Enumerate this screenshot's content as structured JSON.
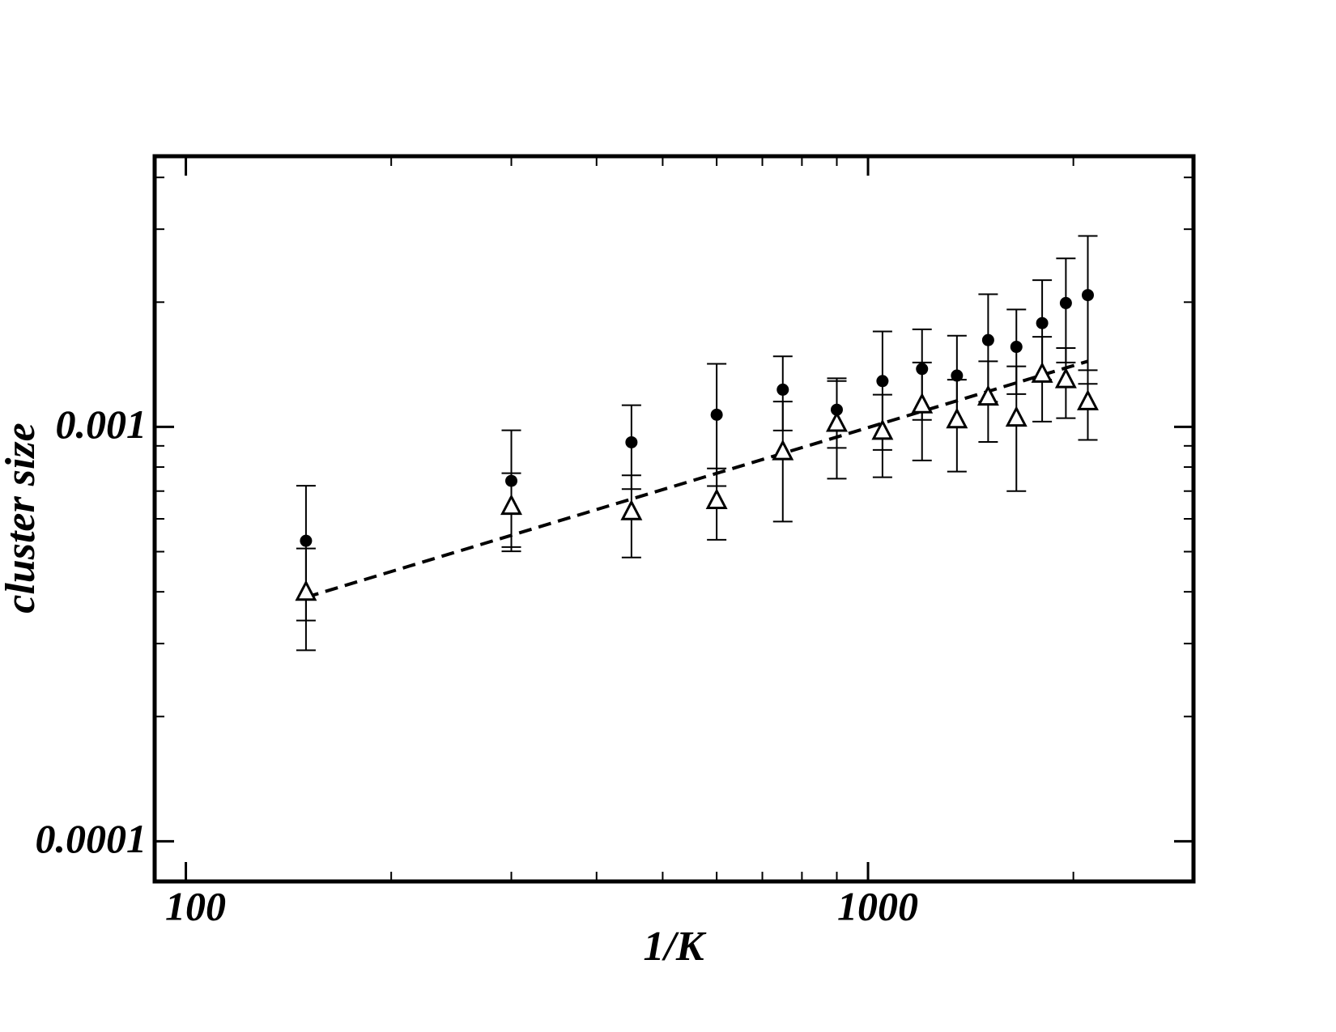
{
  "chart_data": {
    "type": "scatter",
    "xlabel": "1/K",
    "ylabel": "cluster size",
    "xscale": "log",
    "yscale": "log",
    "xlim": [
      90,
      3000
    ],
    "ylim": [
      8e-05,
      0.0045
    ],
    "xticks": [
      100,
      1000
    ],
    "xminorticks": [
      200,
      300,
      400,
      500,
      600,
      700,
      800,
      900,
      2000,
      3000
    ],
    "yticks": [
      0.0001,
      0.001
    ],
    "yminorticks": [
      0.0002,
      0.0003,
      0.0004,
      0.0005,
      0.0006,
      0.0007,
      0.0008,
      0.0009,
      0.002,
      0.003,
      0.004
    ],
    "x": [
      150,
      300,
      450,
      600,
      750,
      900,
      1050,
      1200,
      1350,
      1500,
      1650,
      1800,
      1950,
      2100
    ],
    "series": [
      {
        "marker": "circle",
        "color": "#000000",
        "values": [
          0.000531,
          0.000741,
          0.000918,
          0.00107,
          0.00123,
          0.0011,
          0.00129,
          0.00138,
          0.00133,
          0.00162,
          0.00156,
          0.00178,
          0.00199,
          0.00208
        ],
        "errors": [
          0.00019,
          0.00024,
          0.00021,
          0.00035,
          0.00025,
          0.00021,
          0.00041,
          0.00034,
          0.00033,
          0.00047,
          0.00036,
          0.00048,
          0.00056,
          0.00081
        ]
      },
      {
        "marker": "triangle",
        "color": "#000000",
        "values": [
          0.000399,
          0.000643,
          0.000624,
          0.000664,
          0.000871,
          0.00102,
          0.000976,
          0.00113,
          0.00104,
          0.00118,
          0.00105,
          0.00134,
          0.0013,
          0.00115
        ],
        "errors": [
          0.00011,
          0.00013,
          0.00014,
          0.00013,
          0.00028,
          0.00027,
          0.00022,
          0.0003,
          0.00026,
          0.00026,
          0.00035,
          0.00031,
          0.00025,
          0.00022
        ]
      }
    ],
    "fit": {
      "x": [
        150,
        2100
      ],
      "values": [
        0.000388,
        0.00144
      ],
      "style": "dashed",
      "color": "#000000"
    }
  }
}
